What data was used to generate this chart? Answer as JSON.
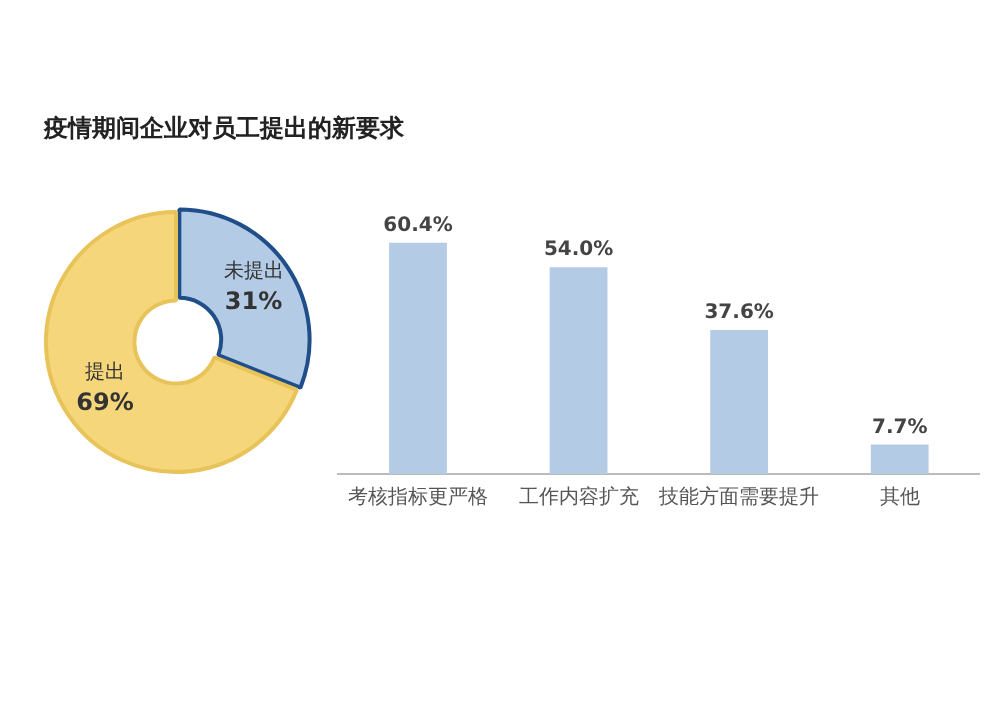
{
  "chart_data": [
    {
      "type": "donut",
      "title": "疫情期间企业对员工提出的新要求",
      "categories": [
        "未提出",
        "提出"
      ],
      "values": [
        31,
        69
      ],
      "colors": [
        "#b4cbe6",
        "#f6d67a"
      ],
      "value_labels": [
        "31%",
        "69%"
      ],
      "legend": false
    },
    {
      "type": "bar",
      "categories": [
        "考核指标更严格",
        "工作内容扩充",
        "技能方面需要提升",
        "其他"
      ],
      "values": [
        60.4,
        54.0,
        37.6,
        7.7
      ],
      "color": "#b4cbe6",
      "value_labels": [
        "60.4%",
        "54.0%",
        "37.6%",
        "7.7%"
      ],
      "tick_labels": "x",
      "grid": false,
      "legend": false
    }
  ]
}
